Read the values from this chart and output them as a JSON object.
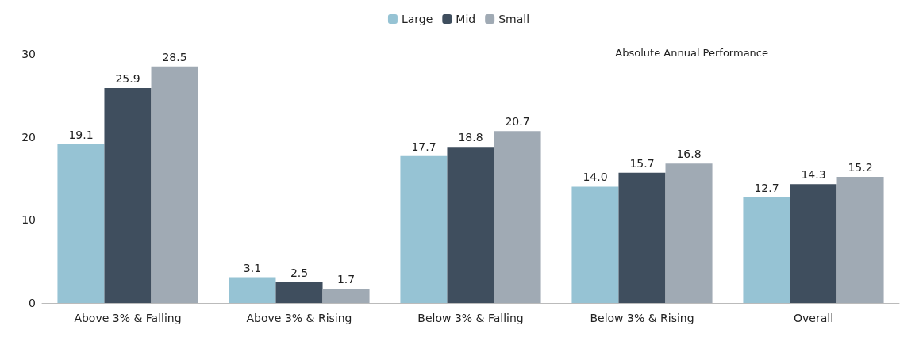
{
  "chart_data": {
    "type": "bar",
    "categories": [
      "Above 3% & Falling",
      "Above 3% & Rising",
      "Below 3% & Falling",
      "Below 3% & Rising",
      "Overall"
    ],
    "series": [
      {
        "name": "Large",
        "color": "#96c3d4",
        "values": [
          19.1,
          3.1,
          17.7,
          14.0,
          12.7
        ],
        "value_labels": [
          "19.1",
          "3.1",
          "17.7",
          "14.0",
          "12.7"
        ]
      },
      {
        "name": "Mid",
        "color": "#3f4e5e",
        "values": [
          25.9,
          2.5,
          18.8,
          15.7,
          14.3
        ],
        "value_labels": [
          "25.9",
          "2.5",
          "18.8",
          "15.7",
          "14.3"
        ]
      },
      {
        "name": "Small",
        "color": "#a0aab4",
        "values": [
          28.5,
          1.7,
          20.7,
          16.8,
          15.2
        ],
        "value_labels": [
          "28.5",
          "1.7",
          "20.7",
          "16.8",
          "15.2"
        ]
      }
    ],
    "ylim": [
      0,
      30
    ],
    "yticks": [
      0,
      10,
      20,
      30
    ],
    "grid": false,
    "legend": "top",
    "annotations": [
      "Absolute Annual Performance"
    ]
  }
}
